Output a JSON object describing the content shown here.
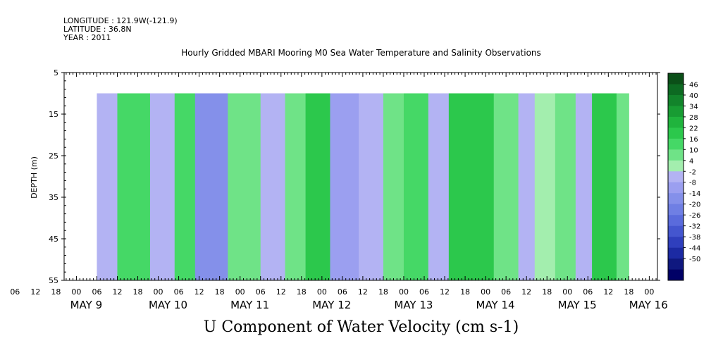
{
  "header": {
    "longitude": "LONGITUDE : 121.9W(-121.9)",
    "latitude": "LATITUDE : 36.8N",
    "year": "YEAR : 2011"
  },
  "chart_data": {
    "type": "heatmap",
    "title": "Hourly Gridded MBARI Mooring M0 Sea Water Temperature and Salinity Observations",
    "xlabel": "U Component of Water Velocity (cm s-1)",
    "ylabel": "DEPTH (m)",
    "ylim": [
      5,
      55
    ],
    "y_inverted": true,
    "y_ticks": [
      "5",
      "15",
      "25",
      "35",
      "45",
      "55"
    ],
    "data_depth_range": [
      10,
      55
    ],
    "x_hour_ticks": [
      "06",
      "12",
      "18",
      "00",
      "06",
      "12",
      "18",
      "00",
      "06",
      "12",
      "18",
      "00",
      "06",
      "12",
      "18",
      "00",
      "06",
      "12",
      "18",
      "00",
      "06",
      "12",
      "18",
      "00",
      "06",
      "12",
      "18",
      "00",
      "06",
      "12",
      "18",
      "00"
    ],
    "x_day_labels": [
      "MAY  9",
      "MAY 10",
      "MAY 11",
      "MAY 12",
      "MAY 13",
      "MAY 14",
      "MAY 15",
      "MAY 16"
    ],
    "colorbar": {
      "labels": [
        "46",
        "40",
        "34",
        "28",
        "22",
        "16",
        "10",
        "4",
        "-2",
        "-8",
        "-14",
        "-20",
        "-26",
        "-32",
        "-38",
        "-44",
        "-50"
      ],
      "colors": {
        "strong_positive": "#0b5b1c",
        "positive": "#2fd15a",
        "weak_positive": "#a8f0b0",
        "weak_negative": "#a9a9f2",
        "negative": "#5a6bdc",
        "strong_negative": "#000066"
      }
    },
    "bands": [
      {
        "x": [
          9.25,
          9.5
        ],
        "v": -6
      },
      {
        "x": [
          9.5,
          9.9
        ],
        "v": 8
      },
      {
        "x": [
          9.9,
          10.2
        ],
        "v": -10
      },
      {
        "x": [
          10.2,
          10.45
        ],
        "v": 12
      },
      {
        "x": [
          10.45,
          10.85
        ],
        "v": -18
      },
      {
        "x": [
          10.85,
          11.25
        ],
        "v": 6
      },
      {
        "x": [
          11.25,
          11.55
        ],
        "v": -8
      },
      {
        "x": [
          11.55,
          11.8
        ],
        "v": 4
      },
      {
        "x": [
          11.8,
          12.1
        ],
        "v": 14
      },
      {
        "x": [
          12.1,
          12.45
        ],
        "v": -16
      },
      {
        "x": [
          12.45,
          12.75
        ],
        "v": -6
      },
      {
        "x": [
          12.75,
          13.0
        ],
        "v": 6
      },
      {
        "x": [
          13.0,
          13.3
        ],
        "v": 10
      },
      {
        "x": [
          13.3,
          13.55
        ],
        "v": -6
      },
      {
        "x": [
          13.55,
          14.1
        ],
        "v": 16
      },
      {
        "x": [
          14.1,
          14.4
        ],
        "v": 6
      },
      {
        "x": [
          14.4,
          14.6
        ],
        "v": -8
      },
      {
        "x": [
          14.6,
          14.85
        ],
        "v": -4
      },
      {
        "x": [
          14.85,
          15.1
        ],
        "v": 6
      },
      {
        "x": [
          15.1,
          15.3
        ],
        "v": -6
      },
      {
        "x": [
          15.3,
          15.6
        ],
        "v": 18
      },
      {
        "x": [
          15.6,
          15.75
        ],
        "v": 4
      }
    ]
  }
}
